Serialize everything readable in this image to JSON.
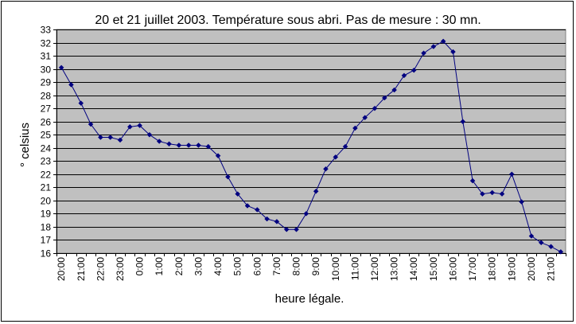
{
  "chart_data": {
    "type": "line",
    "title": "20 et 21 juillet 2003. Température sous abri. Pas de mesure : 30 mn.",
    "xlabel": "heure légale.",
    "ylabel": "° celsius",
    "ylim": [
      16,
      33
    ],
    "ytick_step": 1,
    "grid": true,
    "legend": "none",
    "colors": {
      "line": "#000080",
      "plot_bg": "#c0c0c0",
      "grid": "#000000"
    },
    "xtick_labels": [
      "20:00",
      "21:00",
      "22:00",
      "23:00",
      "0:00",
      "1:00",
      "2:00",
      "3:00",
      "4:00",
      "5:00",
      "6:00",
      "7:00",
      "8:00",
      "9:00",
      "10:00",
      "11:00",
      "12:00",
      "13:00",
      "14:00",
      "15:00",
      "16:00",
      "17:00",
      "18:00",
      "19:00",
      "20:00",
      "21:00"
    ],
    "xtick_every": 2,
    "series": [
      {
        "values": [
          30.1,
          28.8,
          27.4,
          25.8,
          24.8,
          24.8,
          24.6,
          25.6,
          25.7,
          25.0,
          24.5,
          24.3,
          24.2,
          24.2,
          24.2,
          24.1,
          23.4,
          21.8,
          20.5,
          19.6,
          19.3,
          18.6,
          18.4,
          17.8,
          17.8,
          19.0,
          20.7,
          22.4,
          23.3,
          24.1,
          25.5,
          26.3,
          27.0,
          27.8,
          28.4,
          29.5,
          29.9,
          31.2,
          31.7,
          32.1,
          31.3,
          26.0,
          21.5,
          20.5,
          20.6,
          20.5,
          22.0,
          19.9,
          17.3,
          16.8,
          16.5,
          16.1
        ]
      }
    ]
  }
}
